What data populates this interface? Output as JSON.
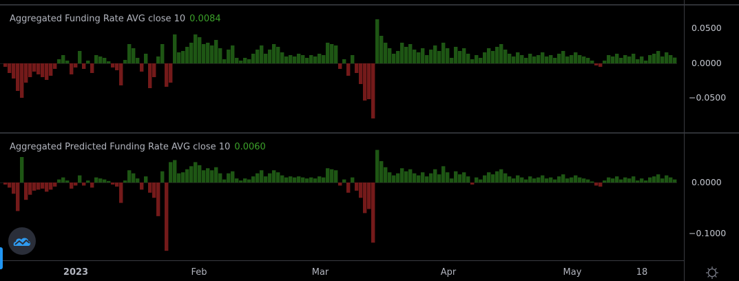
{
  "colors": {
    "positive": "#1e5614",
    "negative": "#741a1a",
    "value_text": "#3ca22a",
    "background": "#000000"
  },
  "chart_data": [
    {
      "type": "bar",
      "title": "Aggregated Funding Rate AVG close 10",
      "last_value": "0.0084",
      "y_ticks": [
        "0.0500",
        "0.0000",
        "−0.0500"
      ],
      "ylim": [
        -0.1,
        0.1
      ],
      "values": [
        -0.005,
        -0.014,
        -0.022,
        -0.04,
        -0.05,
        -0.028,
        -0.02,
        -0.012,
        -0.016,
        -0.02,
        -0.024,
        -0.018,
        -0.008,
        0.006,
        0.012,
        0.004,
        -0.016,
        -0.006,
        0.018,
        -0.008,
        0.004,
        -0.014,
        0.012,
        0.01,
        0.008,
        0.003,
        -0.006,
        -0.01,
        -0.032,
        0.005,
        0.028,
        0.022,
        0.008,
        -0.012,
        0.014,
        -0.036,
        -0.02,
        0.01,
        0.028,
        -0.034,
        -0.028,
        0.042,
        0.016,
        0.018,
        0.024,
        0.03,
        0.042,
        0.038,
        0.028,
        0.03,
        0.026,
        0.034,
        0.022,
        0.006,
        0.02,
        0.026,
        0.008,
        0.004,
        0.008,
        0.006,
        0.014,
        0.02,
        0.026,
        0.014,
        0.02,
        0.028,
        0.024,
        0.016,
        0.01,
        0.012,
        0.01,
        0.014,
        0.012,
        0.008,
        0.012,
        0.01,
        0.014,
        0.012,
        0.03,
        0.028,
        0.026,
        -0.008,
        0.006,
        -0.018,
        0.012,
        -0.014,
        -0.03,
        -0.054,
        -0.052,
        -0.08,
        0.064,
        0.04,
        0.03,
        0.022,
        0.014,
        0.018,
        0.03,
        0.024,
        0.028,
        0.02,
        0.016,
        0.022,
        0.012,
        0.02,
        0.026,
        0.018,
        0.03,
        0.022,
        0.008,
        0.024,
        0.018,
        0.022,
        0.014,
        0.006,
        0.012,
        0.008,
        0.016,
        0.022,
        0.018,
        0.024,
        0.028,
        0.02,
        0.014,
        0.01,
        0.016,
        0.012,
        0.008,
        0.014,
        0.01,
        0.012,
        0.016,
        0.01,
        0.012,
        0.008,
        0.014,
        0.018,
        0.01,
        0.012,
        0.016,
        0.012,
        0.01,
        0.008,
        0.004,
        -0.003,
        -0.005,
        0.004,
        0.012,
        0.01,
        0.014,
        0.008,
        0.012,
        0.01,
        0.014,
        0.006,
        0.01,
        0.004,
        0.012,
        0.014,
        0.018,
        0.01,
        0.016,
        0.012,
        0.0084
      ]
    },
    {
      "type": "bar",
      "title": "Aggregated Predicted Funding Rate AVG close 10",
      "last_value": "0.0060",
      "y_ticks": [
        "0.0000",
        "−0.1000"
      ],
      "ylim": [
        -0.17,
        0.09
      ],
      "values": [
        -0.004,
        -0.01,
        -0.022,
        -0.056,
        0.05,
        -0.034,
        -0.024,
        -0.016,
        -0.014,
        -0.012,
        -0.018,
        -0.014,
        -0.008,
        0.006,
        0.01,
        0.004,
        -0.012,
        -0.006,
        0.014,
        -0.006,
        0.004,
        -0.01,
        0.01,
        0.008,
        0.006,
        0.003,
        -0.004,
        -0.008,
        -0.04,
        0.004,
        0.024,
        0.018,
        0.008,
        -0.014,
        0.012,
        -0.02,
        -0.03,
        -0.066,
        0.022,
        -0.134,
        0.04,
        0.044,
        0.018,
        0.02,
        0.026,
        0.032,
        0.04,
        0.034,
        0.024,
        0.028,
        0.024,
        0.03,
        0.018,
        0.006,
        0.018,
        0.022,
        0.008,
        0.004,
        0.008,
        0.006,
        0.012,
        0.018,
        0.024,
        0.012,
        0.018,
        0.024,
        0.02,
        0.014,
        0.01,
        0.012,
        0.01,
        0.012,
        0.01,
        0.008,
        0.01,
        0.008,
        0.012,
        0.01,
        0.028,
        0.026,
        0.024,
        -0.006,
        0.006,
        -0.02,
        0.01,
        -0.016,
        -0.03,
        -0.06,
        -0.052,
        -0.118,
        0.064,
        0.042,
        0.03,
        0.02,
        0.014,
        0.018,
        0.028,
        0.022,
        0.026,
        0.018,
        0.014,
        0.02,
        0.012,
        0.018,
        0.026,
        0.016,
        0.032,
        0.02,
        0.008,
        0.022,
        0.016,
        0.02,
        0.012,
        -0.004,
        0.01,
        0.006,
        0.014,
        0.02,
        0.016,
        0.022,
        0.026,
        0.018,
        0.012,
        0.008,
        0.014,
        0.01,
        0.006,
        0.012,
        0.008,
        0.01,
        0.014,
        0.008,
        0.01,
        0.006,
        0.012,
        0.016,
        0.008,
        0.01,
        0.014,
        0.01,
        0.008,
        0.006,
        0.002,
        -0.006,
        -0.008,
        0.004,
        0.01,
        0.008,
        0.012,
        0.006,
        0.01,
        0.008,
        0.012,
        0.004,
        0.008,
        0.004,
        0.01,
        0.012,
        0.016,
        0.008,
        0.014,
        0.01,
        0.006
      ]
    }
  ],
  "time_axis": {
    "ticks": [
      "2023",
      "Feb",
      "Mar",
      "Apr",
      "May",
      "18"
    ]
  }
}
